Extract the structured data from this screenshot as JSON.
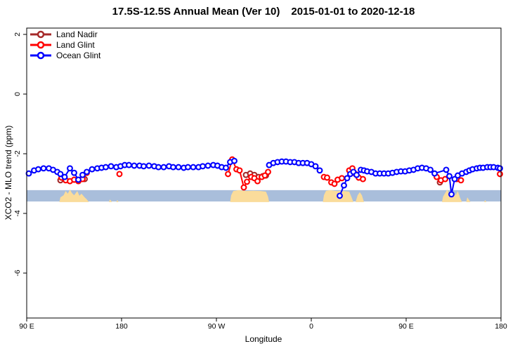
{
  "title": {
    "main": "17.5S-12.5S Annual Mean (Ver 10)",
    "dates": "2015-01-01 to 2020-12-18"
  },
  "y_axis": {
    "label": "XCO2 - MLO trend (ppm)"
  },
  "x_axis": {
    "label": "Longitude"
  },
  "legend": {
    "items": [
      {
        "label": "Land Nadir",
        "color": "#A52A2A"
      },
      {
        "label": "Land Glint",
        "color": "#FF0000"
      },
      {
        "label": "Ocean Glint",
        "color": "#0000FF"
      }
    ]
  },
  "chart_data": {
    "type": "line",
    "title": "17.5S-12.5S Annual Mean (Ver 10)   2015-01-01 to 2020-12-18",
    "xlabel": "Longitude",
    "ylabel": "XCO2 - MLO trend (ppm)",
    "x_axis_span_deg": [
      0,
      450
    ],
    "ylim": [
      -7.5,
      2.2
    ],
    "grid": false,
    "legend_position": "top-left",
    "x_ticks": [
      {
        "deg": 0,
        "label": "90 E"
      },
      {
        "deg": 90,
        "label": "180"
      },
      {
        "deg": 180,
        "label": "90 W"
      },
      {
        "deg": 270,
        "label": "0"
      },
      {
        "deg": 360,
        "label": "90 E"
      },
      {
        "deg": 450,
        "label": "180"
      }
    ],
    "y_ticks": [
      2,
      0,
      -2,
      -4,
      -6
    ],
    "reference_band": {
      "ppm_top": -3.22,
      "ppm_bottom": -3.6,
      "color": "#A9BEDB"
    },
    "land_profile": {
      "color": "#FADC9B",
      "baseline_ppm": -3.62,
      "polygons": [
        [
          [
            31,
            -3.62
          ],
          [
            32,
            -3.46
          ],
          [
            35,
            -3.39
          ],
          [
            37,
            -3.25
          ],
          [
            39,
            -3.34
          ],
          [
            41,
            -3.2
          ],
          [
            43,
            -3.32
          ],
          [
            45,
            -3.39
          ],
          [
            48,
            -3.25
          ],
          [
            50,
            -3.41
          ],
          [
            52,
            -3.34
          ],
          [
            55,
            -3.46
          ],
          [
            57,
            -3.53
          ],
          [
            59,
            -3.62
          ]
        ],
        [
          [
            78,
            -3.62
          ],
          [
            79,
            -3.53
          ],
          [
            80,
            -3.58
          ],
          [
            81,
            -3.62
          ]
        ],
        [
          [
            85,
            -3.62
          ],
          [
            86,
            -3.55
          ],
          [
            87,
            -3.62
          ]
        ],
        [
          [
            193,
            -3.62
          ],
          [
            194,
            -3.39
          ],
          [
            196,
            -3.25
          ],
          [
            201,
            -3.22
          ],
          [
            208,
            -3.25
          ],
          [
            215,
            -3.24
          ],
          [
            222,
            -3.25
          ],
          [
            227,
            -3.27
          ],
          [
            229,
            -3.44
          ],
          [
            230,
            -3.62
          ]
        ],
        [
          [
            281,
            -3.62
          ],
          [
            282,
            -3.39
          ],
          [
            284,
            -3.24
          ],
          [
            288,
            -3.22
          ],
          [
            294,
            -3.25
          ],
          [
            301,
            -3.25
          ],
          [
            306,
            -3.27
          ],
          [
            308,
            -3.44
          ],
          [
            310,
            -3.62
          ]
        ],
        [
          [
            312,
            -3.62
          ],
          [
            314,
            -3.39
          ],
          [
            316,
            -3.29
          ],
          [
            318,
            -3.39
          ],
          [
            320,
            -3.62
          ]
        ],
        [
          [
            394,
            -3.62
          ],
          [
            395,
            -3.44
          ],
          [
            397,
            -3.32
          ],
          [
            399,
            -3.2
          ],
          [
            401,
            -3.34
          ],
          [
            403,
            -3.18
          ],
          [
            405,
            -3.29
          ],
          [
            407,
            -3.39
          ],
          [
            409,
            -3.25
          ],
          [
            411,
            -3.46
          ],
          [
            413,
            -3.62
          ]
        ],
        [
          [
            417,
            -3.62
          ],
          [
            418,
            -3.46
          ],
          [
            419,
            -3.51
          ],
          [
            421,
            -3.62
          ]
        ],
        [
          [
            434,
            -3.62
          ],
          [
            435,
            -3.55
          ],
          [
            436,
            -3.62
          ]
        ]
      ]
    },
    "series": [
      {
        "name": "Land Nadir",
        "color": "#A52A2A",
        "segments": [
          [
            [
              32,
              -2.89
            ]
          ],
          [
            [
              55,
              -2.85
            ]
          ],
          [
            [
              208,
              -2.71
            ],
            [
              212,
              -2.66
            ],
            [
              216,
              -2.71
            ],
            [
              220,
              -2.78
            ],
            [
              224,
              -2.75
            ],
            [
              227,
              -2.73
            ]
          ],
          [
            [
              392,
              -2.96
            ]
          ]
        ]
      },
      {
        "name": "Land Glint",
        "color": "#FF0000",
        "segments": [
          [
            [
              33,
              -2.8
            ],
            [
              37,
              -2.89
            ],
            [
              41,
              -2.92
            ],
            [
              45,
              -2.87
            ],
            [
              49,
              -2.92
            ],
            [
              53,
              -2.85
            ],
            [
              57,
              -2.64
            ]
          ],
          [
            [
              88,
              -2.68
            ]
          ],
          [
            [
              191,
              -2.68
            ],
            [
              195,
              -2.19
            ],
            [
              199,
              -2.52
            ],
            [
              202,
              -2.56
            ],
            [
              206,
              -3.13
            ],
            [
              209,
              -2.94
            ],
            [
              213,
              -2.78
            ],
            [
              216,
              -2.82
            ],
            [
              219,
              -2.92
            ],
            [
              223,
              -2.78
            ],
            [
              226,
              -2.73
            ],
            [
              229,
              -2.61
            ]
          ],
          [
            [
              282,
              -2.78
            ],
            [
              285,
              -2.8
            ],
            [
              289,
              -2.96
            ],
            [
              292,
              -3.01
            ],
            [
              295,
              -2.87
            ],
            [
              299,
              -2.82
            ]
          ],
          [
            [
              306,
              -2.56
            ],
            [
              309,
              -2.49
            ],
            [
              312,
              -2.68
            ],
            [
              315,
              -2.8
            ],
            [
              319,
              -2.85
            ]
          ],
          [
            [
              389,
              -2.78
            ],
            [
              393,
              -2.89
            ],
            [
              397,
              -2.85
            ]
          ],
          [
            [
              408,
              -2.85
            ],
            [
              412,
              -2.89
            ]
          ],
          [
            [
              449,
              -2.68
            ]
          ]
        ]
      },
      {
        "name": "Ocean Glint",
        "color": "#0000FF",
        "segments": [
          [
            [
              2,
              -2.66
            ],
            [
              7,
              -2.56
            ],
            [
              11,
              -2.52
            ],
            [
              16,
              -2.49
            ],
            [
              21,
              -2.49
            ],
            [
              25,
              -2.54
            ],
            [
              29,
              -2.61
            ],
            [
              32,
              -2.68
            ],
            [
              36,
              -2.78
            ],
            [
              41,
              -2.49
            ],
            [
              45,
              -2.64
            ],
            [
              49,
              -2.87
            ],
            [
              53,
              -2.71
            ],
            [
              57,
              -2.61
            ],
            [
              62,
              -2.52
            ],
            [
              67,
              -2.49
            ],
            [
              71,
              -2.47
            ],
            [
              75,
              -2.45
            ],
            [
              80,
              -2.42
            ],
            [
              85,
              -2.45
            ],
            [
              89,
              -2.42
            ],
            [
              93,
              -2.38
            ],
            [
              97,
              -2.38
            ],
            [
              102,
              -2.4
            ],
            [
              107,
              -2.4
            ],
            [
              111,
              -2.42
            ],
            [
              116,
              -2.4
            ],
            [
              121,
              -2.42
            ],
            [
              125,
              -2.45
            ],
            [
              130,
              -2.45
            ],
            [
              135,
              -2.42
            ],
            [
              139,
              -2.45
            ],
            [
              144,
              -2.45
            ],
            [
              149,
              -2.47
            ],
            [
              153,
              -2.45
            ],
            [
              158,
              -2.45
            ],
            [
              163,
              -2.45
            ],
            [
              167,
              -2.42
            ],
            [
              172,
              -2.4
            ],
            [
              177,
              -2.38
            ],
            [
              181,
              -2.4
            ],
            [
              185,
              -2.45
            ],
            [
              189,
              -2.47
            ],
            [
              193,
              -2.28
            ],
            [
              197,
              -2.24
            ]
          ],
          [
            [
              230,
              -2.38
            ],
            [
              234,
              -2.31
            ],
            [
              238,
              -2.28
            ],
            [
              242,
              -2.26
            ],
            [
              246,
              -2.26
            ],
            [
              250,
              -2.28
            ],
            [
              254,
              -2.28
            ],
            [
              258,
              -2.31
            ],
            [
              262,
              -2.31
            ],
            [
              266,
              -2.31
            ],
            [
              270,
              -2.35
            ],
            [
              274,
              -2.42
            ],
            [
              278,
              -2.56
            ]
          ],
          [
            [
              297,
              -3.41
            ],
            [
              301,
              -3.06
            ],
            [
              304,
              -2.82
            ],
            [
              307,
              -2.68
            ],
            [
              310,
              -2.61
            ],
            [
              313,
              -2.71
            ],
            [
              317,
              -2.54
            ],
            [
              320,
              -2.56
            ],
            [
              323,
              -2.59
            ],
            [
              327,
              -2.61
            ],
            [
              331,
              -2.66
            ],
            [
              335,
              -2.66
            ],
            [
              339,
              -2.66
            ],
            [
              343,
              -2.66
            ],
            [
              347,
              -2.64
            ],
            [
              351,
              -2.61
            ],
            [
              355,
              -2.59
            ],
            [
              359,
              -2.59
            ],
            [
              363,
              -2.56
            ],
            [
              367,
              -2.54
            ],
            [
              371,
              -2.49
            ],
            [
              375,
              -2.47
            ],
            [
              379,
              -2.49
            ],
            [
              383,
              -2.54
            ],
            [
              387,
              -2.66
            ],
            [
              398,
              -2.54
            ],
            [
              401,
              -2.75
            ],
            [
              403,
              -3.36
            ],
            [
              406,
              -2.85
            ],
            [
              409,
              -2.73
            ],
            [
              413,
              -2.66
            ],
            [
              417,
              -2.61
            ],
            [
              420,
              -2.56
            ],
            [
              423,
              -2.52
            ],
            [
              427,
              -2.49
            ],
            [
              430,
              -2.47
            ],
            [
              433,
              -2.47
            ],
            [
              437,
              -2.45
            ],
            [
              440,
              -2.45
            ],
            [
              443,
              -2.45
            ],
            [
              447,
              -2.47
            ],
            [
              449,
              -2.49
            ]
          ]
        ]
      }
    ]
  }
}
